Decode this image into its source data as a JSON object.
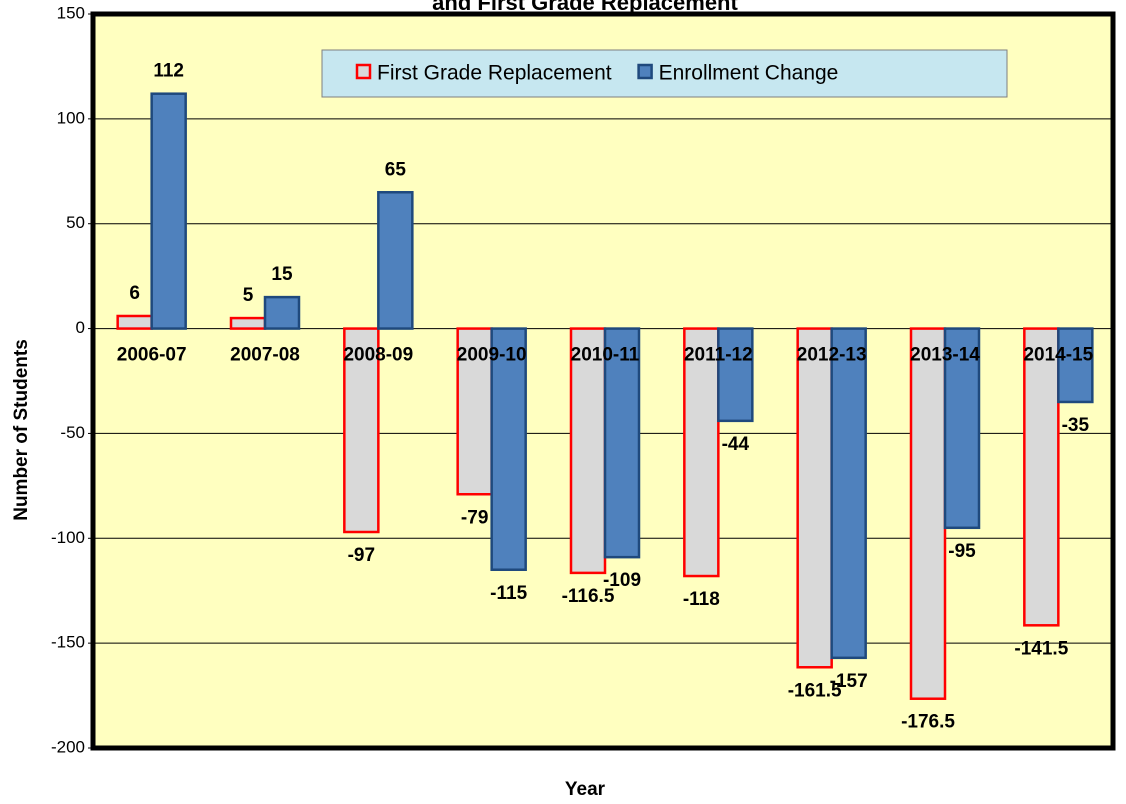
{
  "chart_data": {
    "type": "bar",
    "title": "and First Grade Replacement",
    "xlabel": "Year",
    "ylabel": "Number of Students",
    "categories": [
      "2006-07",
      "2007-08",
      "2008-09",
      "2009-10",
      "2010-11",
      "2011-12",
      "2012-13",
      "2013-14",
      "2014-15"
    ],
    "series": [
      {
        "name": "First Grade Replacement",
        "color": "#d9d9d9",
        "edge": "#ff0000",
        "values": [
          6,
          5,
          -97,
          -79,
          -116.5,
          -118,
          -161.5,
          -176.5,
          -141.5
        ]
      },
      {
        "name": "Enrollment Change",
        "color": "#4f81bd",
        "edge": "#1f497d",
        "values": [
          112,
          15,
          65,
          -115,
          -109,
          -44,
          -157,
          -95,
          -35
        ]
      }
    ],
    "ylim": [
      -200,
      150
    ],
    "yticks": [
      -200,
      -150,
      -100,
      -50,
      0,
      50,
      100,
      150
    ],
    "grid": true,
    "legend": "upper center"
  }
}
